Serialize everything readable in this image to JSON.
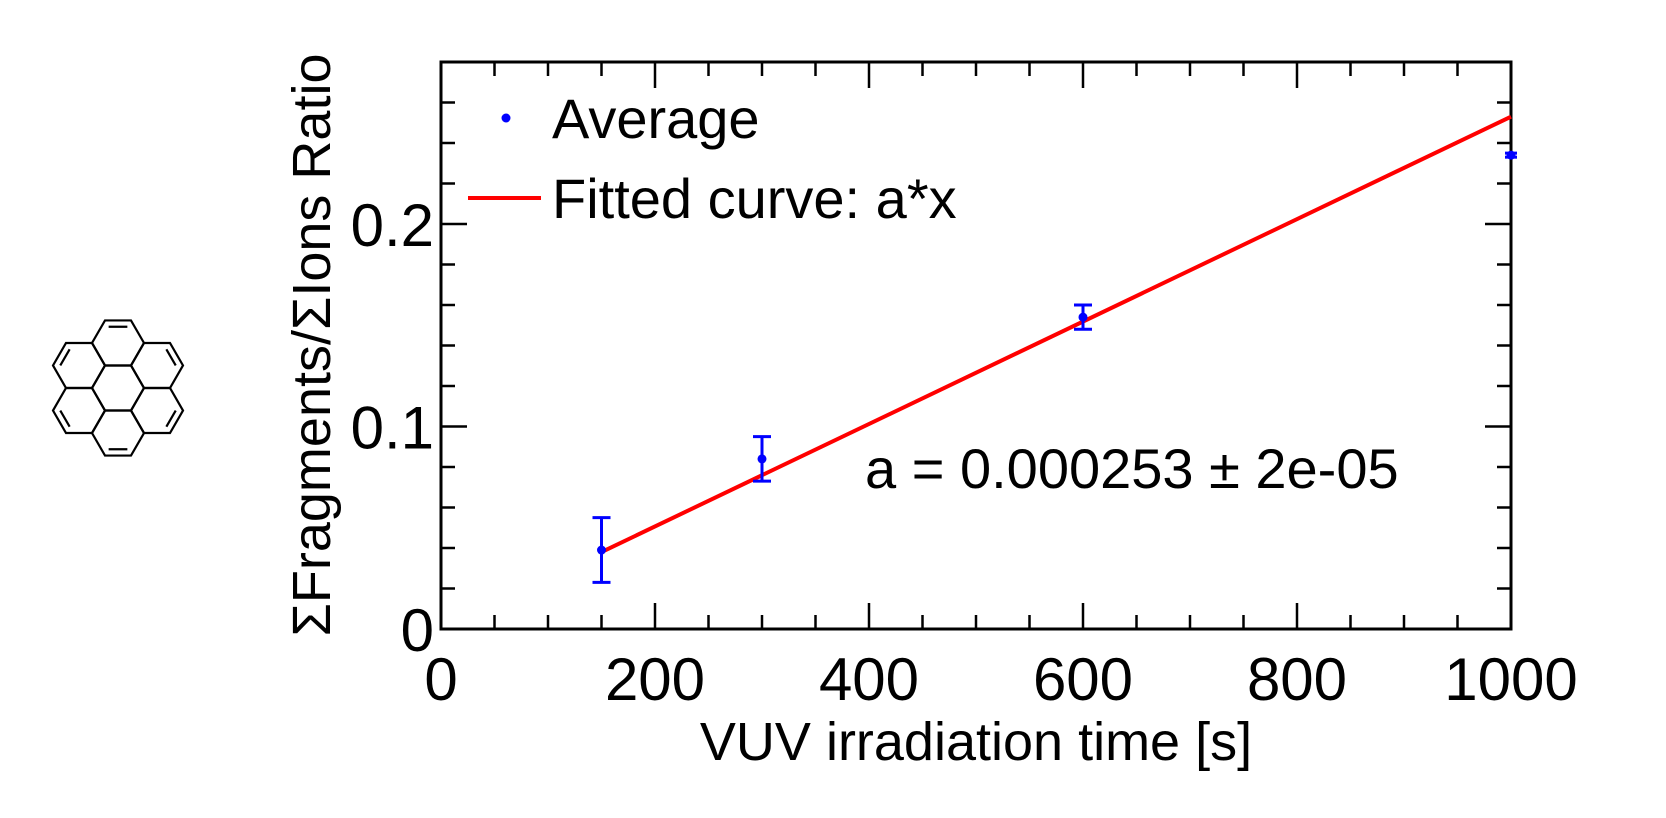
{
  "chart_data": {
    "type": "scatter",
    "xlabel": "VUV irradiation time [s]",
    "ylabel": "ΣFragments/ΣIons Ratio",
    "xlim": [
      0,
      1000
    ],
    "ylim": [
      0,
      0.28
    ],
    "x_ticks": [
      0,
      200,
      400,
      600,
      800,
      1000
    ],
    "x_tick_labels": [
      "0",
      "200",
      "400",
      "600",
      "800",
      "1000"
    ],
    "y_ticks": [
      0,
      0.1,
      0.2
    ],
    "y_tick_labels": [
      "0",
      "0.1",
      "0.2"
    ],
    "grid": false,
    "legend_position": "top-left",
    "series": [
      {
        "name": "Average",
        "kind": "points_with_error",
        "color": "#0000ff",
        "x": [
          150,
          300,
          600,
          1000
        ],
        "y": [
          0.039,
          0.084,
          0.154,
          0.234
        ],
        "yerr": [
          0.016,
          0.011,
          0.006,
          0.001
        ]
      },
      {
        "name": "Fitted curve: a*x",
        "kind": "line",
        "color": "#ff0000",
        "x": [
          150,
          1000
        ],
        "y": [
          0.038,
          0.253
        ]
      }
    ],
    "annotation": "a = 0.000253 ± 2e-05",
    "inset_icon": "coronene-molecule-icon"
  }
}
